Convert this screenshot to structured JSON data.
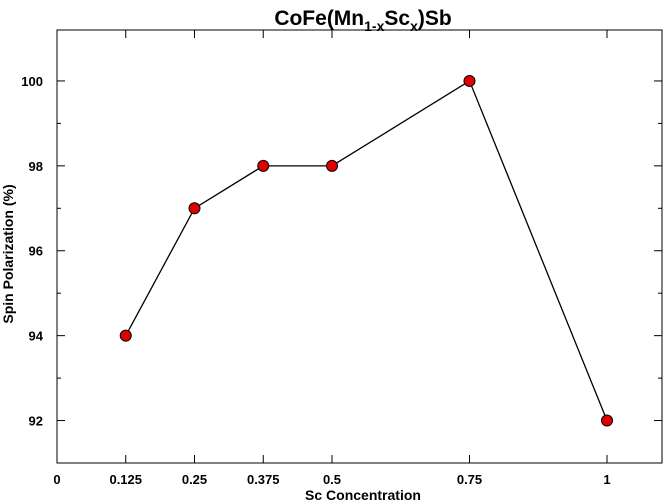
{
  "chart_data": {
    "type": "line",
    "title": {
      "parts": [
        {
          "text": "CoFe(Mn",
          "sub": false
        },
        {
          "text": "1-x",
          "sub": true
        },
        {
          "text": "Sc",
          "sub": false
        },
        {
          "text": "x",
          "sub": true
        },
        {
          "text": ")Sb",
          "sub": false
        }
      ]
    },
    "xlabel": "Sc Concentration",
    "ylabel": "Spin Polarization (%)",
    "xlim": [
      0,
      1.1
    ],
    "ylim": [
      91,
      101.2
    ],
    "x_ticks": [
      {
        "value": 0,
        "label": "0"
      },
      {
        "value": 0.125,
        "label": "0.125"
      },
      {
        "value": 0.25,
        "label": "0.25"
      },
      {
        "value": 0.375,
        "label": "0.375"
      },
      {
        "value": 0.5,
        "label": "0.5"
      },
      {
        "value": 0.75,
        "label": "0.75"
      },
      {
        "value": 1,
        "label": "1"
      }
    ],
    "y_ticks": [
      {
        "value": 92,
        "label": "92"
      },
      {
        "value": 94,
        "label": "94"
      },
      {
        "value": 96,
        "label": "96"
      },
      {
        "value": 98,
        "label": "98"
      },
      {
        "value": 100,
        "label": "100"
      }
    ],
    "y_minor_ticks": [
      93,
      95,
      97,
      99
    ],
    "grid": false,
    "series": [
      {
        "x": [
          0.125,
          0.25,
          0.375,
          0.5,
          0.75,
          1
        ],
        "y": [
          94,
          97,
          98,
          98,
          100,
          92
        ],
        "marker": "circle",
        "marker_color": "#e00000",
        "line_color": "#000000"
      }
    ]
  }
}
